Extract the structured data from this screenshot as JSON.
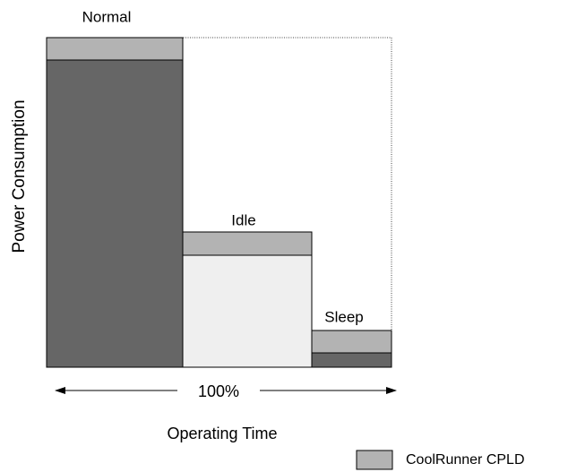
{
  "states": [
    "Normal",
    "Idle",
    "Sleep"
  ],
  "y_axis_label": "Power Consumption",
  "x_axis_label": "Operating Time",
  "duration_label": "100%",
  "legend": {
    "label": "CoolRunner CPLD"
  }
}
